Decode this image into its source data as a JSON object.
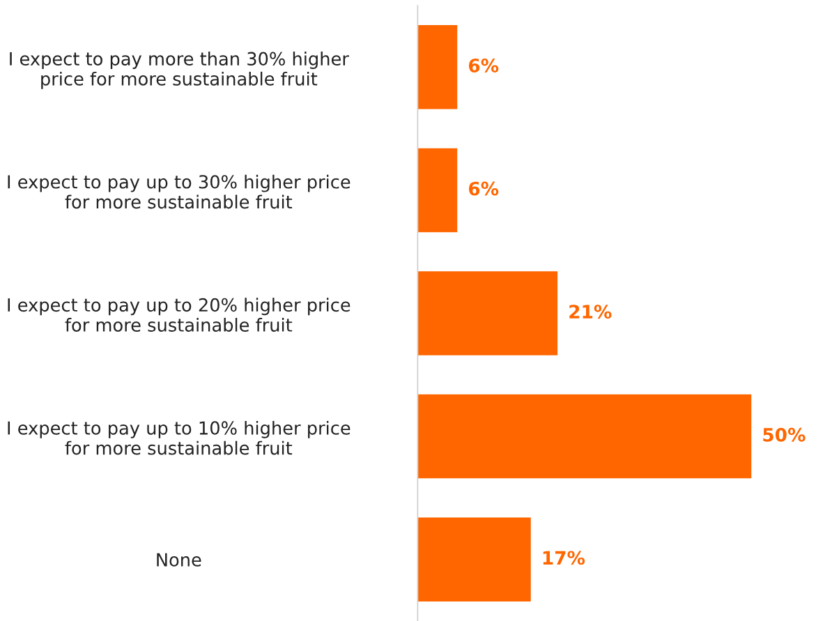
{
  "chart_data": {
    "type": "bar",
    "orientation": "horizontal",
    "categories": [
      "I expect to pay more than 30% higher\nprice for more sustainable fruit",
      "I expect to pay up to 30% higher price\nfor more sustainable fruit",
      "I expect to pay up to 20% higher price\nfor more sustainable fruit",
      "I expect to pay up to 10% higher price\nfor more sustainable fruit",
      "None"
    ],
    "values": [
      6,
      6,
      21,
      50,
      17
    ],
    "value_labels": [
      "6%",
      "6%",
      "21%",
      "50%",
      "17%"
    ],
    "color": "#ff6600",
    "tick_labels": "y",
    "grid": false,
    "legend": false
  }
}
